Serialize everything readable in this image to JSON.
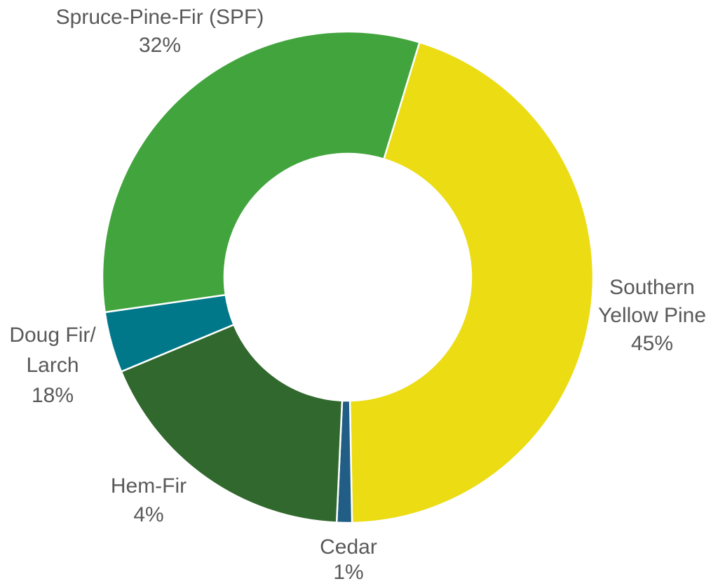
{
  "chart_data": {
    "type": "donut",
    "categories": [
      "Southern Yellow Pine",
      "Cedar",
      "Doug Fir/ Larch",
      "Hem-Fir",
      "Spruce-Pine-Fir (SPF)"
    ],
    "values": [
      45,
      1,
      18,
      4,
      32
    ],
    "value_labels": [
      "45%",
      "1%",
      "18%",
      "4%",
      "32%"
    ],
    "colors": [
      "#ebdc14",
      "#215d85",
      "#31682d",
      "#00788a",
      "#42a43d"
    ]
  }
}
